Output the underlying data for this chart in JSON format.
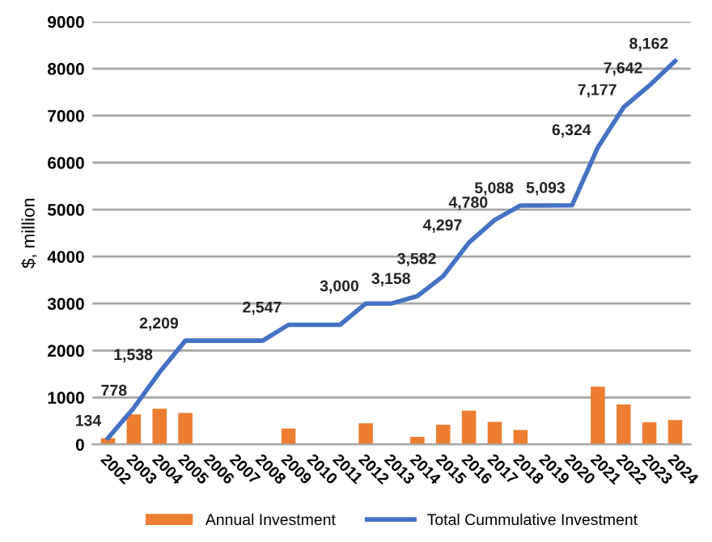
{
  "chart_data": {
    "type": "bar",
    "ylabel": "$, million",
    "categories": [
      "2002",
      "2003",
      "2004",
      "2005",
      "2006",
      "2007",
      "2008",
      "2009",
      "2010",
      "2011",
      "2012",
      "2013",
      "2014",
      "2015",
      "2016",
      "2017",
      "2018",
      "2019",
      "2020",
      "2021",
      "2022",
      "2023",
      "2024"
    ],
    "series": [
      {
        "name": "Annual Investment",
        "color": "#ed7d31",
        "values": [
          130,
          640,
          760,
          670,
          0,
          0,
          0,
          340,
          0,
          0,
          450,
          0,
          160,
          420,
          720,
          480,
          310,
          0,
          0,
          1230,
          850,
          470,
          520
        ]
      },
      {
        "name": "Total Cummulative Investment",
        "type": "line",
        "color": "#4472c4",
        "values": [
          134,
          778,
          1538,
          2209,
          2209,
          2209,
          2209,
          2547,
          2547,
          2547,
          3000,
          3000,
          3158,
          3582,
          4297,
          4780,
          5088,
          5088,
          5093,
          6324,
          7177,
          7642,
          8162
        ],
        "value_labels": [
          "134",
          "778",
          "1,538",
          "2,209",
          null,
          null,
          null,
          "2,547",
          null,
          null,
          "3,000",
          null,
          "3,158",
          "3,582",
          "4,297",
          "4,780",
          "5,088",
          null,
          "5,093",
          "6,324",
          "7,177",
          "7,642",
          "8,162"
        ]
      }
    ],
    "ylim": [
      0,
      9000
    ],
    "yticks": [
      0,
      1000,
      2000,
      3000,
      4000,
      5000,
      6000,
      7000,
      8000,
      9000
    ],
    "grid": "y",
    "legend": "bottom",
    "marker": "none"
  }
}
